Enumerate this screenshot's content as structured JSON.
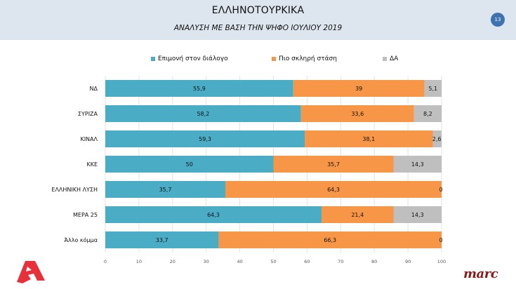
{
  "header": {
    "title": "ΕΛΛΗΝΟΤΟΥΡΚΙΚΑ",
    "subtitle": "ΑΝΑΛΥΣΗ ΜΕ ΒΑΣΗ ΤΗΝ ΨΗΦΟ ΙΟΥΛΙΟΥ 2019",
    "page_number": "13"
  },
  "logos": {
    "left": "alpha-logo",
    "right_text": "marc"
  },
  "colors": {
    "header_bg": "#dde6ee",
    "badge": "#3f72b0",
    "series1": "#4bacc6",
    "series2": "#f79646",
    "series3": "#bfbfbf",
    "alpha_logo": "#e8303a",
    "marc": "#8b1a1a"
  },
  "chart_data": {
    "type": "bar",
    "orientation": "horizontal",
    "stacked": true,
    "title": "ΕΛΛΗΝΟΤΟΥΡΚΙΚΑ",
    "subtitle": "ΑΝΑΛΥΣΗ ΜΕ ΒΑΣΗ ΤΗΝ ΨΗΦΟ ΙΟΥΛΙΟΥ 2019",
    "categories": [
      "ΝΔ",
      "ΣΥΡΙΖΑ",
      "ΚΙΝΑΛ",
      "ΚΚΕ",
      "ΕΛΛΗΝΙΚΗ ΛΥΣΗ",
      "ΜΕΡΑ 25",
      "Άλλο κόμμα"
    ],
    "series": [
      {
        "name": "Επιμονή στον διάλογο",
        "color": "#4bacc6",
        "values": [
          55.9,
          58.2,
          59.3,
          50,
          35.7,
          64.3,
          33.7
        ],
        "labels": [
          "55,9",
          "58,2",
          "59,3",
          "50",
          "35,7",
          "64,3",
          "33,7"
        ]
      },
      {
        "name": "Πιο σκληρή στάση",
        "color": "#f79646",
        "values": [
          39,
          33.6,
          38.1,
          35.7,
          64.3,
          21.4,
          66.3
        ],
        "labels": [
          "39",
          "33,6",
          "38,1",
          "35,7",
          "64,3",
          "21,4",
          "66,3"
        ]
      },
      {
        "name": "ΔΑ",
        "color": "#bfbfbf",
        "values": [
          5.1,
          8.2,
          2.6,
          14.3,
          0,
          14.3,
          0
        ],
        "labels": [
          "5,1",
          "8,2",
          "2,6",
          "14,3",
          "0",
          "14,3",
          "0"
        ]
      }
    ],
    "xlim": [
      0,
      100
    ],
    "xticks": [
      "0",
      "10",
      "20",
      "30",
      "40",
      "50",
      "60",
      "70",
      "80",
      "90",
      "100"
    ],
    "xlabel": "",
    "ylabel": "",
    "grid": true,
    "legend_position": "top"
  }
}
